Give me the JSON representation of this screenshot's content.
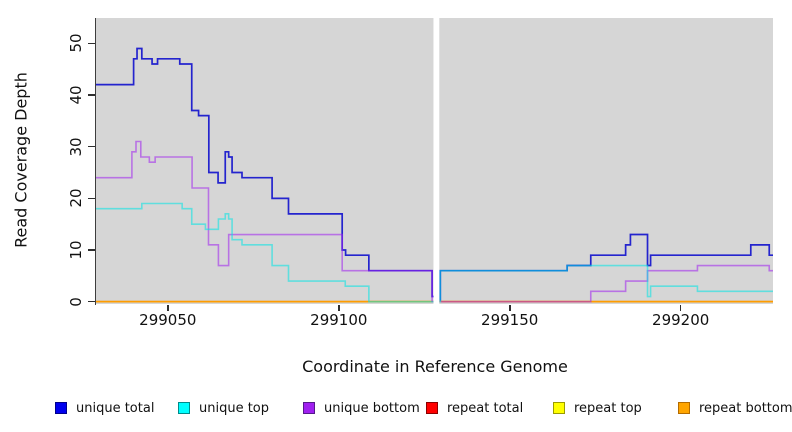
{
  "chart_data": {
    "type": "line",
    "subtype": "step",
    "title": "",
    "xlabel": "Coordinate in Reference Genome",
    "ylabel": "Read Coverage Depth",
    "xlim": [
      299029,
      299227
    ],
    "ylim": [
      0,
      55
    ],
    "xticks": [
      299050,
      299100,
      299150,
      299200
    ],
    "xtick_labels": [
      "299050",
      "299100",
      "299150",
      "299200"
    ],
    "yticks": [
      0,
      10,
      20,
      30,
      40,
      50
    ],
    "ytick_labels": [
      "0",
      "10",
      "20",
      "30",
      "40",
      "50"
    ],
    "grid": false,
    "plot_background": "#d6d6d6",
    "gap_band": {
      "x_from": 299127.7,
      "x_to": 299129.4,
      "color": "#ffffff"
    },
    "legend_position": "bottom",
    "series": [
      {
        "id": "unique_total",
        "label": "unique total",
        "stroke": "#2424ce",
        "opacity": 1,
        "width": 1.7,
        "swatch": "#0000ee",
        "swatch_border": "#00008b",
        "segments": [
          [
            [
              299029,
              42
            ],
            [
              299040,
              47
            ],
            [
              299041,
              49
            ],
            [
              299042.4,
              47
            ],
            [
              299045.4,
              46
            ],
            [
              299047,
              47
            ],
            [
              299053.5,
              46
            ],
            [
              299057,
              37
            ],
            [
              299059,
              36
            ],
            [
              299062,
              25
            ],
            [
              299064.7,
              23
            ],
            [
              299066.8,
              29
            ],
            [
              299067.8,
              28
            ],
            [
              299068.8,
              25
            ],
            [
              299071.7,
              24
            ],
            [
              299080.5,
              20
            ],
            [
              299085.3,
              17
            ],
            [
              299101,
              10
            ],
            [
              299102,
              9
            ],
            [
              299108.8,
              6
            ],
            [
              299127.3,
              1
            ],
            [
              299128.2,
              0
            ],
            [
              299128.6,
              0
            ]
          ],
          [
            [
              299129.4,
              0
            ],
            [
              299129.7,
              6
            ],
            [
              299166.8,
              7
            ],
            [
              299173.7,
              9
            ],
            [
              299183.9,
              11
            ],
            [
              299185.3,
              13
            ],
            [
              299190.3,
              7
            ],
            [
              299191.2,
              9
            ],
            [
              299220.5,
              11
            ],
            [
              299225.9,
              9
            ],
            [
              299227,
              9
            ]
          ]
        ]
      },
      {
        "id": "repeat_total",
        "label": "repeat total",
        "stroke": "#ee1111",
        "opacity": 1,
        "width": 1.6,
        "swatch": "#ff0000",
        "swatch_border": "#8b0000",
        "segments": [
          [
            [
              299029,
              0
            ],
            [
              299128.6,
              0
            ]
          ],
          [
            [
              299129.4,
              0
            ],
            [
              299227,
              0
            ]
          ]
        ]
      },
      {
        "id": "repeat_top",
        "label": "repeat top",
        "stroke": "#f2f20a",
        "opacity": 1,
        "width": 1.6,
        "swatch": "#ffff00",
        "swatch_border": "#9b9b00",
        "segments": [
          [
            [
              299029,
              0
            ],
            [
              299128.6,
              0
            ]
          ],
          [
            [
              299129.4,
              0
            ],
            [
              299227,
              0
            ]
          ]
        ]
      },
      {
        "id": "repeat_bottom",
        "label": "repeat bottom",
        "stroke": "#ff9d00",
        "opacity": 1,
        "width": 1.6,
        "swatch": "#ffa500",
        "swatch_border": "#b36b00",
        "segments": [
          [
            [
              299029,
              0
            ],
            [
              299128.6,
              0
            ]
          ],
          [
            [
              299129.4,
              0
            ],
            [
              299227,
              0
            ]
          ]
        ]
      },
      {
        "id": "unique_bottom",
        "label": "unique bottom",
        "stroke": "#a020f0",
        "opacity": 0.55,
        "width": 1.6,
        "swatch": "#a020f0",
        "swatch_border": "#551a8b",
        "segments": [
          [
            [
              299029,
              24
            ],
            [
              299039.5,
              29
            ],
            [
              299040.7,
              31
            ],
            [
              299042.1,
              28
            ],
            [
              299044.6,
              27
            ],
            [
              299046.3,
              28
            ],
            [
              299057.1,
              22
            ],
            [
              299061.9,
              11
            ],
            [
              299064.8,
              7
            ],
            [
              299067.8,
              13
            ],
            [
              299101,
              6
            ],
            [
              299127.3,
              0
            ],
            [
              299128.6,
              0
            ]
          ],
          [
            [
              299129.4,
              0
            ],
            [
              299173.7,
              2
            ],
            [
              299183.9,
              4
            ],
            [
              299190.3,
              6
            ],
            [
              299204.9,
              7
            ],
            [
              299225.9,
              6
            ],
            [
              299227,
              6
            ]
          ]
        ]
      },
      {
        "id": "unique_top",
        "label": "unique top",
        "stroke": "#00e6e6",
        "opacity": 0.55,
        "width": 1.6,
        "swatch": "#00ffff",
        "swatch_border": "#008b8b",
        "segments": [
          [
            [
              299029,
              18
            ],
            [
              299042.4,
              19
            ],
            [
              299054.2,
              18
            ],
            [
              299057,
              15
            ],
            [
              299061,
              14
            ],
            [
              299064.8,
              16
            ],
            [
              299066.8,
              17
            ],
            [
              299067.8,
              16
            ],
            [
              299068.8,
              12
            ],
            [
              299071.7,
              11
            ],
            [
              299080.5,
              7
            ],
            [
              299085.3,
              4
            ],
            [
              299101.9,
              3
            ],
            [
              299108.8,
              0
            ],
            [
              299128.6,
              0
            ]
          ],
          [
            [
              299129.4,
              0
            ],
            [
              299129.7,
              6
            ],
            [
              299166.8,
              7
            ],
            [
              299190.3,
              1
            ],
            [
              299191.2,
              3
            ],
            [
              299204.9,
              2
            ],
            [
              299227,
              2
            ]
          ]
        ]
      }
    ],
    "legend_order": [
      "unique_total",
      "unique_top",
      "unique_bottom",
      "repeat_total",
      "repeat_top",
      "repeat_bottom"
    ]
  }
}
